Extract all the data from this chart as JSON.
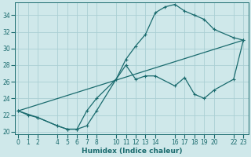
{
  "xlabel": "Humidex (Indice chaleur)",
  "bg_color": "#cfe8ea",
  "grid_color": "#aacfd4",
  "line_color": "#1a6b6e",
  "line1_x": [
    0,
    1,
    2,
    4,
    5,
    6,
    7,
    8,
    10,
    11,
    12,
    13,
    14,
    15,
    16,
    17,
    18,
    19,
    20,
    22,
    23
  ],
  "line1_y": [
    22.5,
    22.0,
    21.7,
    20.7,
    20.3,
    20.3,
    20.7,
    22.5,
    26.3,
    28.7,
    30.3,
    31.7,
    34.3,
    35.0,
    35.3,
    34.5,
    34.0,
    33.5,
    32.3,
    31.3,
    31.0
  ],
  "line2_x": [
    0,
    2,
    4,
    5,
    6,
    7,
    8,
    10,
    11,
    12,
    13,
    14,
    16,
    17,
    18,
    19,
    20,
    22,
    23
  ],
  "line2_y": [
    22.5,
    21.7,
    20.7,
    20.3,
    20.3,
    22.5,
    24.0,
    26.3,
    28.0,
    26.3,
    26.7,
    26.7,
    25.5,
    26.5,
    24.5,
    24.0,
    25.0,
    26.3,
    31.0
  ],
  "line3_x": [
    0,
    23
  ],
  "line3_y": [
    22.5,
    31.0
  ],
  "ylim_min": 20,
  "ylim_max": 35,
  "xlim_min": -0.3,
  "xlim_max": 23.5,
  "yticks": [
    20,
    22,
    24,
    26,
    28,
    30,
    32,
    34
  ],
  "xticks": [
    0,
    1,
    2,
    4,
    5,
    6,
    7,
    8,
    10,
    11,
    12,
    13,
    14,
    16,
    17,
    18,
    19,
    20,
    22,
    23
  ],
  "tick_fontsize": 5.5,
  "xlabel_fontsize": 6.5
}
